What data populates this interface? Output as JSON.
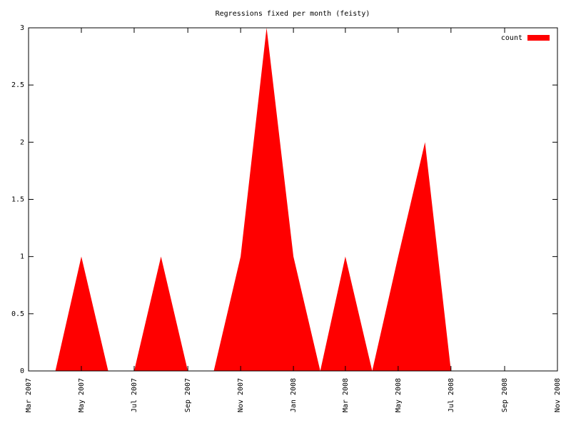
{
  "chart_data": {
    "type": "area",
    "title": "Regressions fixed per month (feisty)",
    "x": [
      "2007-04",
      "2007-05",
      "2007-06",
      "2007-07",
      "2007-08",
      "2007-09",
      "2007-10",
      "2007-11",
      "2007-12",
      "2008-01",
      "2008-02",
      "2008-03",
      "2008-04",
      "2008-05",
      "2008-06",
      "2008-07"
    ],
    "series": [
      {
        "name": "count",
        "color": "#ff0000",
        "values": [
          0,
          1,
          0,
          0,
          1,
          0,
          0,
          1,
          3,
          1,
          0,
          1,
          0,
          1,
          2,
          0
        ]
      }
    ],
    "xlim": [
      "2007-03",
      "2008-11"
    ],
    "xticks": [
      {
        "value": "2007-03",
        "label": "Mar 2007"
      },
      {
        "value": "2007-05",
        "label": "May 2007"
      },
      {
        "value": "2007-07",
        "label": "Jul 2007"
      },
      {
        "value": "2007-09",
        "label": "Sep 2007"
      },
      {
        "value": "2007-11",
        "label": "Nov 2007"
      },
      {
        "value": "2008-01",
        "label": "Jan 2008"
      },
      {
        "value": "2008-03",
        "label": "Mar 2008"
      },
      {
        "value": "2008-05",
        "label": "May 2008"
      },
      {
        "value": "2008-07",
        "label": "Jul 2008"
      },
      {
        "value": "2008-09",
        "label": "Sep 2008"
      },
      {
        "value": "2008-11",
        "label": "Nov 2008"
      }
    ],
    "ylim": [
      0,
      3
    ],
    "yticks": [
      0,
      0.5,
      1,
      1.5,
      2,
      2.5,
      3
    ],
    "legend": "top-right"
  }
}
